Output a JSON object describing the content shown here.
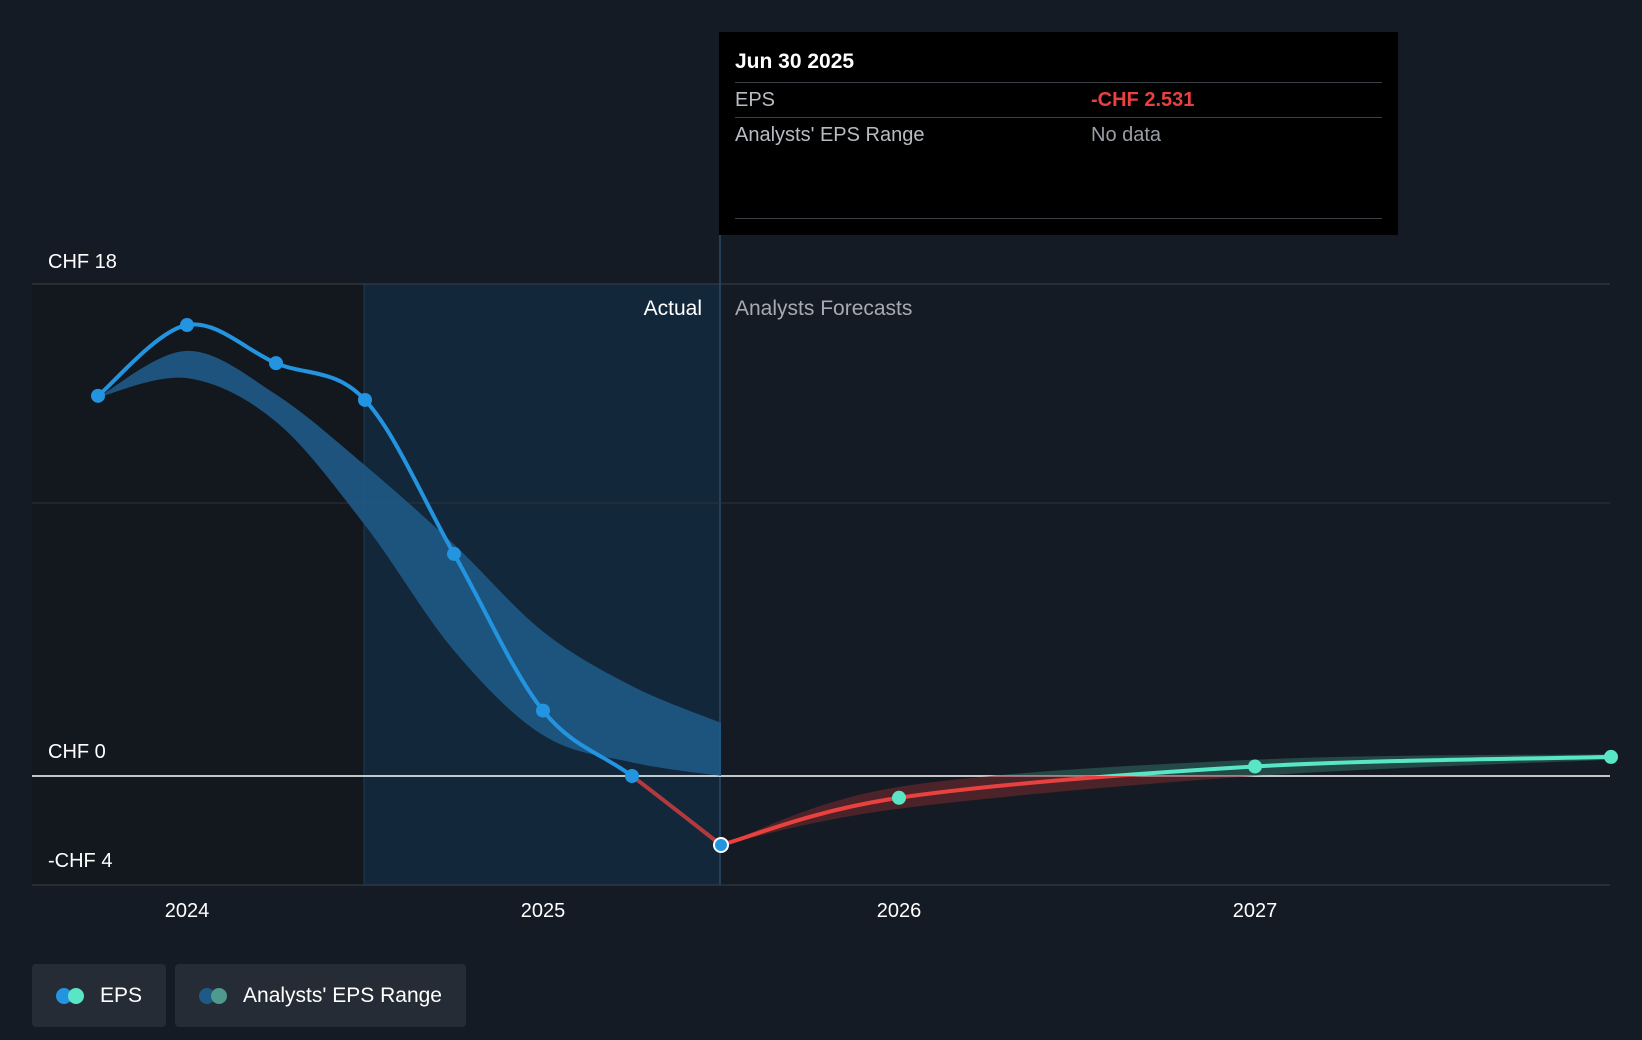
{
  "chart_data": {
    "type": "line",
    "y_axis": {
      "label_top": "CHF 18",
      "label_zero": "CHF 0",
      "label_bottom": "-CHF 4",
      "ylim": [
        -4,
        18
      ]
    },
    "x_ticks": [
      "2024",
      "2025",
      "2026",
      "2027"
    ],
    "region_labels": {
      "actual": "Actual",
      "forecast": "Analysts Forecasts"
    },
    "series": [
      {
        "name": "EPS (actual)",
        "x": [
          2023.75,
          2024.0,
          2024.25,
          2024.5,
          2024.75,
          2025.0,
          2025.25,
          2025.5
        ],
        "values": [
          13.95,
          16.55,
          15.15,
          13.8,
          8.15,
          2.4,
          0.0,
          -2.531
        ]
      },
      {
        "name": "EPS (forecast)",
        "x": [
          2025.5,
          2026.0,
          2027.0,
          2028.0
        ],
        "values": [
          -2.531,
          -0.8,
          0.35,
          0.7
        ]
      }
    ],
    "eps_range_band": {
      "x": [
        2023.75,
        2024.0,
        2024.25,
        2024.5,
        2024.75,
        2025.0,
        2025.25,
        2025.5
      ],
      "upper": [
        13.9,
        15.6,
        14.0,
        11.4,
        8.5,
        5.3,
        3.3,
        1.95
      ],
      "lower": [
        13.9,
        14.6,
        13.0,
        9.2,
        4.6,
        1.5,
        0.5,
        0.0
      ]
    },
    "forecast_band": {
      "x": [
        2025.5,
        2026.0,
        2027.0,
        2028.0
      ],
      "upper": [
        -2.531,
        -0.4,
        0.6,
        0.8
      ],
      "lower": [
        -2.531,
        -1.2,
        0.0,
        0.6
      ]
    }
  },
  "tooltip": {
    "date": "Jun 30 2025",
    "rows": [
      {
        "key": "EPS",
        "value": "-CHF 2.531"
      },
      {
        "key": "Analysts' EPS Range",
        "value": "No data"
      }
    ]
  },
  "legend": {
    "eps_label": "EPS",
    "range_label": "Analysts' EPS Range"
  },
  "colors": {
    "actual_line": "#2394df",
    "negative_line": "#e8413f",
    "forecast_line": "#58e6c6",
    "band": "#1f5a86"
  }
}
